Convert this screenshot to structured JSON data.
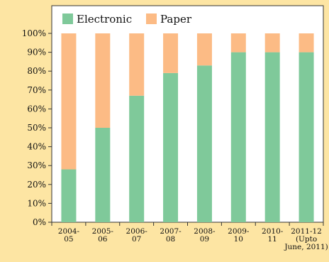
{
  "colors": {
    "electronic": "#7fc99a",
    "paper": "#fcbb85",
    "background": "#fde5a3",
    "plot_background": "#ffffff"
  },
  "chart_data": {
    "type": "bar",
    "stacked": true,
    "percent_stacked": true,
    "title": "",
    "xlabel": "",
    "ylabel": "",
    "ylim": [
      0,
      100
    ],
    "ytick_values": [
      0,
      10,
      20,
      30,
      40,
      50,
      60,
      70,
      80,
      90,
      100
    ],
    "yticks": [
      "0%",
      "10%",
      "20%",
      "30%",
      "40%",
      "50%",
      "60%",
      "70%",
      "80%",
      "90%",
      "100%"
    ],
    "categories": [
      [
        "2004-",
        "05"
      ],
      [
        "2005-",
        "06"
      ],
      [
        "2006-",
        "07"
      ],
      [
        "2007-",
        "08"
      ],
      [
        "2008-",
        "09"
      ],
      [
        "2009-",
        "10"
      ],
      [
        "2010-",
        "11"
      ],
      [
        "2011-12",
        "(Upto",
        "June, 2011)"
      ]
    ],
    "series": [
      {
        "name": "Electronic",
        "color": "#7fc99a",
        "values": [
          28,
          50,
          67,
          79,
          83,
          90,
          90,
          90
        ]
      },
      {
        "name": "Paper",
        "color": "#fcbb85",
        "values": [
          72,
          50,
          33,
          21,
          17,
          10,
          10,
          10
        ]
      }
    ],
    "grid": false,
    "legend": "top-left"
  }
}
